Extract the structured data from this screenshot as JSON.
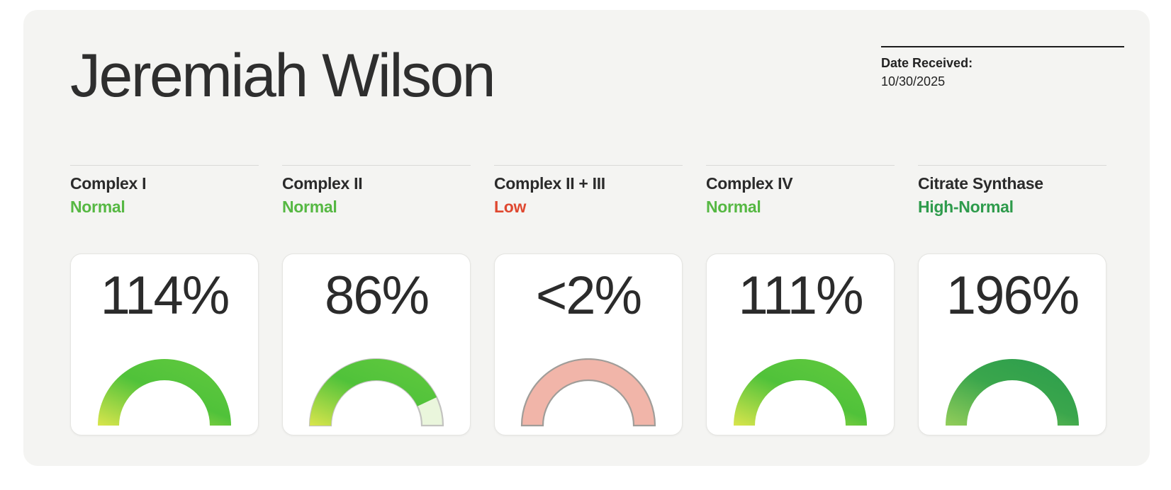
{
  "header": {
    "patient_name": "Jeremiah Wilson",
    "date_received_label": "Date Received:",
    "date_received_value": "10/30/2025"
  },
  "colors": {
    "panel_background": "#f4f4f2",
    "card_background": "#ffffff",
    "status_normal": "#56b843",
    "status_low": "#df4830",
    "status_high_normal": "#2e9b4c",
    "text_dark": "#2d2d2d"
  },
  "chart_data": {
    "type": "gauge",
    "description": "Five semicircular gauge cards showing enzyme activity percentages",
    "gauges": [
      {
        "label": "Complex I",
        "status": "Normal",
        "status_color": "#56b843",
        "value_label": "114%",
        "value_percent": 114,
        "displayed_fill_fraction": 1,
        "arc_gradient": [
          "#d9e54c",
          "#50c23a",
          "#5fc83e"
        ],
        "track": null
      },
      {
        "label": "Complex II",
        "status": "Normal",
        "status_color": "#56b843",
        "value_label": "86%",
        "value_percent": 86,
        "displayed_fill_fraction": 0.86,
        "arc_gradient": [
          "#d9e54c",
          "#50c23a",
          "#5fc83e"
        ],
        "track": {
          "fill": "#eaf6dc",
          "stroke": "#c3c3c0"
        }
      },
      {
        "label": "Complex II + III",
        "status": "Low",
        "status_color": "#df4830",
        "value_label": "<2%",
        "value_percent": 2,
        "displayed_fill_fraction": 0,
        "arc_gradient": null,
        "track": {
          "fill": "#f1b5a9",
          "stroke": "#a09d99"
        }
      },
      {
        "label": "Complex IV",
        "status": "Normal",
        "status_color": "#56b843",
        "value_label": "111%",
        "value_percent": 111,
        "displayed_fill_fraction": 1,
        "arc_gradient": [
          "#d9e54c",
          "#50c23a",
          "#5fc83e"
        ],
        "track": null
      },
      {
        "label": "Citrate Synthase",
        "status": "High-Normal",
        "status_color": "#2e9b4c",
        "value_label": "196%",
        "value_percent": 196,
        "displayed_fill_fraction": 1,
        "arc_gradient": [
          "#93cd5a",
          "#3aa64c",
          "#2d9e4d"
        ],
        "track": null
      }
    ]
  }
}
